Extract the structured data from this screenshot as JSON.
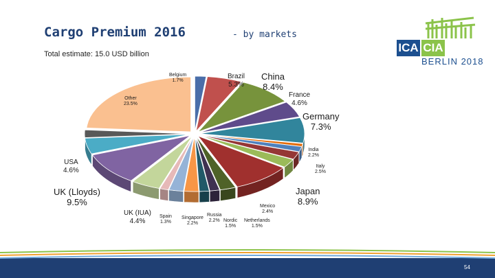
{
  "title": "Cargo Premium 2016",
  "title_suffix": "- by markets",
  "subtitle": "Total estimate: 15.0 USD billion",
  "logo": {
    "left": "ICA",
    "right": "CIA",
    "caption": "BERLIN 2018"
  },
  "page_number": "54",
  "chart_data": {
    "type": "pie",
    "slices": [
      {
        "name": "Belgium",
        "label": "1.7%",
        "value": 1.7,
        "color": "#4a6ea9"
      },
      {
        "name": "Brazil",
        "label": "5.3%",
        "value": 5.3,
        "color": "#c0504d"
      },
      {
        "name": "China",
        "label": "8.4%",
        "value": 8.4,
        "color": "#77933c"
      },
      {
        "name": "France",
        "label": "4.6%",
        "value": 4.6,
        "color": "#5f4b8b"
      },
      {
        "name": "Germany",
        "label": "7.3%",
        "value": 7.3,
        "color": "#31859c"
      },
      {
        "name": "",
        "label": "",
        "value": 0.8,
        "color": "#e46c0a"
      },
      {
        "name": "",
        "label": "",
        "value": 1.5,
        "color": "#4f81bd"
      },
      {
        "name": "India",
        "label": "2.2%",
        "value": 2.2,
        "color": "#953735"
      },
      {
        "name": "Italy",
        "label": "2.5%",
        "value": 2.5,
        "color": "#9bbb59"
      },
      {
        "name": "Japan",
        "label": "8.9%",
        "value": 8.9,
        "color": "#a0302e"
      },
      {
        "name": "Mexico",
        "label": "2.4%",
        "value": 2.4,
        "color": "#4f6228"
      },
      {
        "name": "Netherlands",
        "label": "1.5%",
        "value": 1.5,
        "color": "#3f3151"
      },
      {
        "name": "Nordic",
        "label": "1.5%",
        "value": 1.5,
        "color": "#215968"
      },
      {
        "name": "Russia",
        "label": "2.2%",
        "value": 2.2,
        "color": "#f79646"
      },
      {
        "name": "Singapore",
        "label": "2.2%",
        "value": 2.2,
        "color": "#95b3d7"
      },
      {
        "name": "Spain",
        "label": "1.3%",
        "value": 1.3,
        "color": "#e6b9b8"
      },
      {
        "name": "UK (IUA)",
        "label": "4.4%",
        "value": 4.4,
        "color": "#c3d69b"
      },
      {
        "name": "UK (Lloyds)",
        "label": "9.5%",
        "value": 9.5,
        "color": "#8064a2"
      },
      {
        "name": "USA",
        "label": "4.6%",
        "value": 4.6,
        "color": "#4bacc6"
      },
      {
        "name": "",
        "label": "",
        "value": 2.2,
        "color": "#595959"
      },
      {
        "name": "Other",
        "label": "23.5%",
        "value": 23.5,
        "color": "#fac090"
      }
    ]
  }
}
